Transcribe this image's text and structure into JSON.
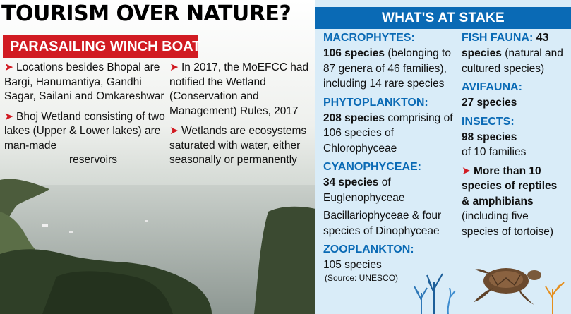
{
  "headline": "TOURISM OVER NATURE?",
  "subhead": "PARASAILING WINCH BOAT",
  "left_bullets": {
    "col_a": [
      {
        "text": "Locations besides Bhopal are Bargi, Hanumantiya, Gandhi Sagar, Sailani and Omkareshwar"
      },
      {
        "text": "Bhoj Wetland consisting of two lakes (Upper & Lower lakes) are man-made",
        "tail": "reservoirs"
      }
    ],
    "col_b": [
      {
        "text": "In 2017, the MoEFCC had notified the Wetland (Conservation and Management) Rules, 2017"
      },
      {
        "text": "Wetlands are ecosystems saturated with water, either seasonally or permanently"
      }
    ]
  },
  "stake": {
    "header": "WHAT'S AT STAKE",
    "macrophytes": {
      "title": "MACROPHYTES:",
      "bold": "106 species",
      "text": " (belonging to 87 genera of 46 families), including 14 rare species"
    },
    "phytoplankton": {
      "title": "PHYTOPLANKTON:",
      "bold": "208 species",
      "text": " comprising of 106 species of Chlorophyceae"
    },
    "cyanophyceae": {
      "title": "CYANOPHYCEAE:",
      "bold": "34 species",
      "text": " of Euglenophyceae",
      "text2": "Bacillariophyceae & four species of Dinophyceae"
    },
    "zooplankton": {
      "title": "ZOOPLANKTON:",
      "text": "105 species"
    },
    "source": "(Source: UNESCO)",
    "fish": {
      "title_a": "FISH FAUNA: ",
      "bold_b": "43",
      "bold": "species",
      "text": " (natural and cultured species)"
    },
    "avifauna": {
      "title": "AVIFAUNA:",
      "bold": "27 species"
    },
    "insects": {
      "title": "INSECTS:",
      "bold": "98 species",
      "text": "of 10 families"
    },
    "reptiles": {
      "bold": "More than 10 species of reptiles & amphibians",
      "text": " (including five species of tortoise)"
    }
  },
  "colors": {
    "accent_red": "#d11b22",
    "accent_blue": "#0a6ab5",
    "panel_bg": "#d9ecf8"
  },
  "icons": [
    "arrow-bullet-icon",
    "turtle-illustration",
    "coral-illustration"
  ]
}
